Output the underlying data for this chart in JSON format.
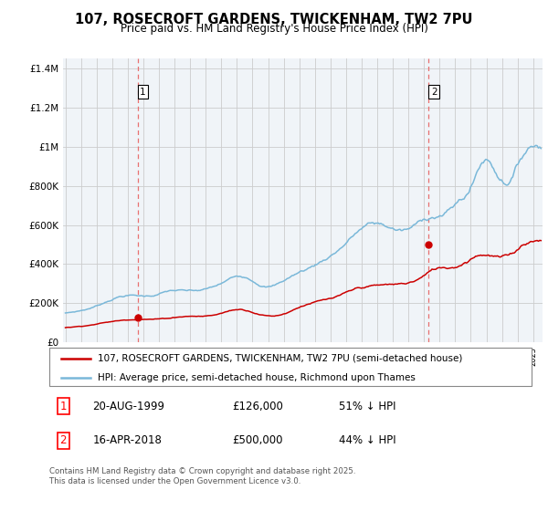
{
  "title": "107, ROSECROFT GARDENS, TWICKENHAM, TW2 7PU",
  "subtitle": "Price paid vs. HM Land Registry's House Price Index (HPI)",
  "ylim": [
    0,
    1450000
  ],
  "yticks": [
    0,
    200000,
    400000,
    600000,
    800000,
    1000000,
    1200000,
    1400000
  ],
  "ytick_labels": [
    "£0",
    "£200K",
    "£400K",
    "£600K",
    "£800K",
    "£1M",
    "£1.2M",
    "£1.4M"
  ],
  "sale1_year": 1999.635,
  "sale1_price": 126000,
  "sale2_year": 2018.29,
  "sale2_price": 500000,
  "hpi_color": "#7ab8d9",
  "price_color": "#cc0000",
  "dashed_color": "#e87070",
  "grid_color": "#cccccc",
  "bg_color": "#f0f4f8",
  "legend_line1": "107, ROSECROFT GARDENS, TWICKENHAM, TW2 7PU (semi-detached house)",
  "legend_line2": "HPI: Average price, semi-detached house, Richmond upon Thames",
  "ann1_date": "20-AUG-1999",
  "ann1_price": "£126,000",
  "ann1_hpi": "51% ↓ HPI",
  "ann2_date": "16-APR-2018",
  "ann2_price": "£500,000",
  "ann2_hpi": "44% ↓ HPI",
  "footer": "Contains HM Land Registry data © Crown copyright and database right 2025.\nThis data is licensed under the Open Government Licence v3.0."
}
